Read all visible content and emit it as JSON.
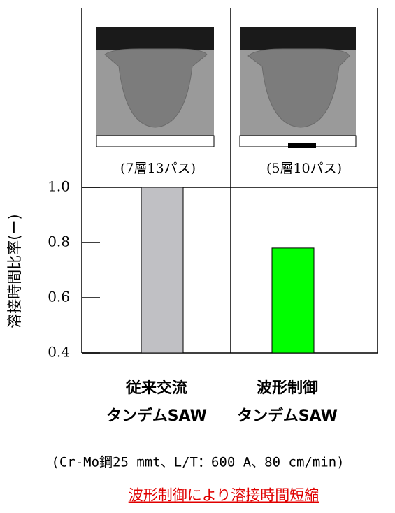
{
  "chart_data": {
    "type": "bar",
    "y_label": "溶接時間比率(ー)",
    "categories": [
      [
        "従来交流",
        "タンデムSAW"
      ],
      [
        "波形制御",
        "タンデムSAW"
      ]
    ],
    "captions": [
      "(7層13パス)",
      "(5層10パス)"
    ],
    "series": [
      {
        "colors": [
          "#c0c0c4",
          "#00ff00"
        ],
        "values": [
          1.0,
          0.78
        ]
      }
    ],
    "ylim": [
      0.4,
      1.0
    ],
    "yticks": [
      {
        "value": 0.4,
        "label": "0.4"
      },
      {
        "value": 0.6,
        "label": "0.6"
      },
      {
        "value": 0.8,
        "label": "0.8"
      },
      {
        "value": 1.0,
        "label": "1.0"
      }
    ],
    "note": "(Cr-Mo鋼25 mmt、L/T：600 A、80 cm/min)",
    "conclusion": "波形制御により溶接時間短縮"
  }
}
